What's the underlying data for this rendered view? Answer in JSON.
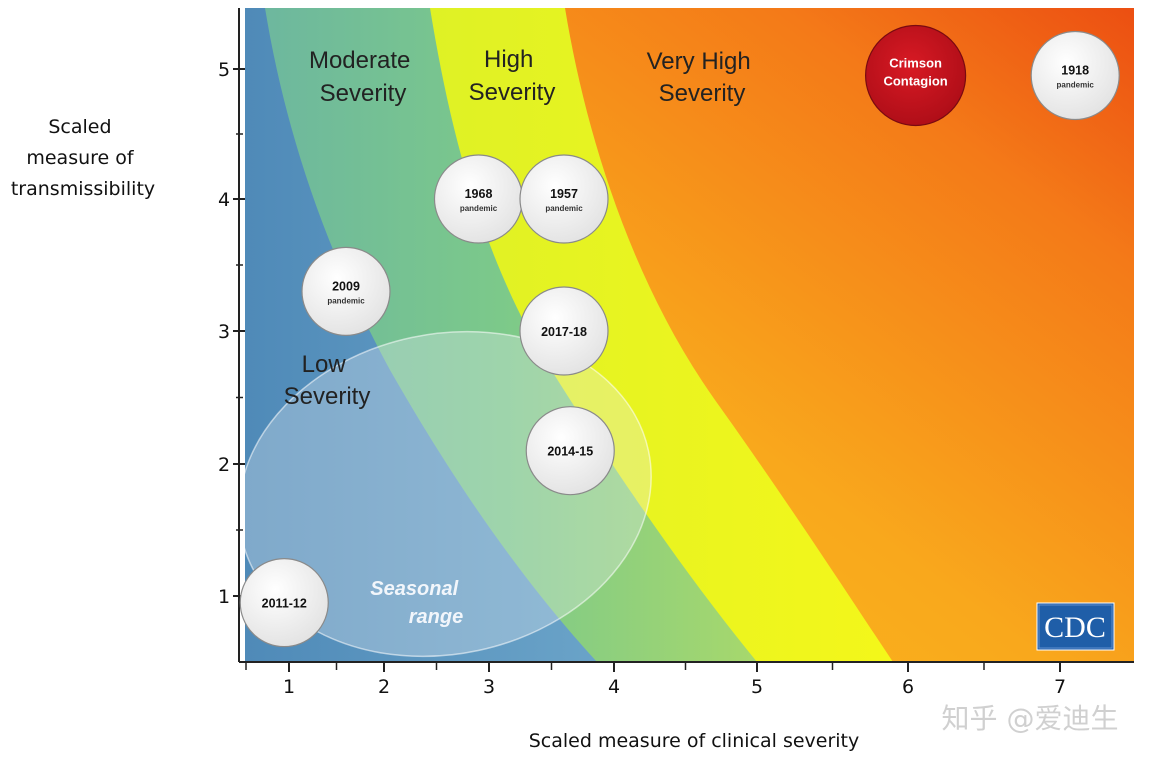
{
  "chart_data": {
    "type": "scatter",
    "xlabel": "Scaled measure of clinical severity",
    "ylabel": [
      "Scaled",
      "measure of",
      "transmissibility"
    ],
    "x_ticks": [
      1,
      2,
      3,
      4,
      5,
      6,
      7
    ],
    "y_ticks": [
      1,
      2,
      3,
      4,
      5
    ],
    "xlim": [
      0.65,
      7.4
    ],
    "ylim": [
      0.5,
      5.5
    ],
    "regions": [
      {
        "name": [
          "Low",
          "Severity"
        ],
        "color": "#5b93be"
      },
      {
        "name": [
          "Moderate",
          "Severity"
        ],
        "color": "#79c68a"
      },
      {
        "name": [
          "High",
          "Severity"
        ],
        "color": "#e2f21c"
      },
      {
        "name": [
          "Very High",
          "Severity"
        ],
        "color": "#f7a51b"
      }
    ],
    "points": [
      {
        "label": "2011-12",
        "sub": "",
        "x": 0.95,
        "y": 0.95
      },
      {
        "label": "2009",
        "sub": "pandemic",
        "x": 1.6,
        "y": 3.3
      },
      {
        "label": "1968",
        "sub": "pandemic",
        "x": 2.9,
        "y": 4.0
      },
      {
        "label": "1957",
        "sub": "pandemic",
        "x": 3.6,
        "y": 4.0
      },
      {
        "label": "2017-18",
        "sub": "",
        "x": 3.6,
        "y": 3.0
      },
      {
        "label": "2014-15",
        "sub": "",
        "x": 3.65,
        "y": 2.1
      },
      {
        "label": "Crimson\nContagion",
        "sub": "",
        "x": 6.05,
        "y": 4.95,
        "color": "#c8101c"
      },
      {
        "label": "1918",
        "sub": "pandemic",
        "x": 7.1,
        "y": 4.95
      }
    ],
    "annotations": [
      {
        "text": [
          "Seasonal",
          "range"
        ]
      }
    ],
    "legend": "none",
    "grid": false
  },
  "logo": {
    "text": "CDC"
  },
  "watermark": {
    "text": "知乎 @爱迪生"
  },
  "colors": {
    "low": "#5b93be",
    "moderate": "#79c68a",
    "high": "#e2f21c",
    "very_high": "#f7a51b",
    "very_high_edge": "#ef5a12",
    "crimson": "#c8101c",
    "cdc_blue": "#1f5ea8"
  }
}
